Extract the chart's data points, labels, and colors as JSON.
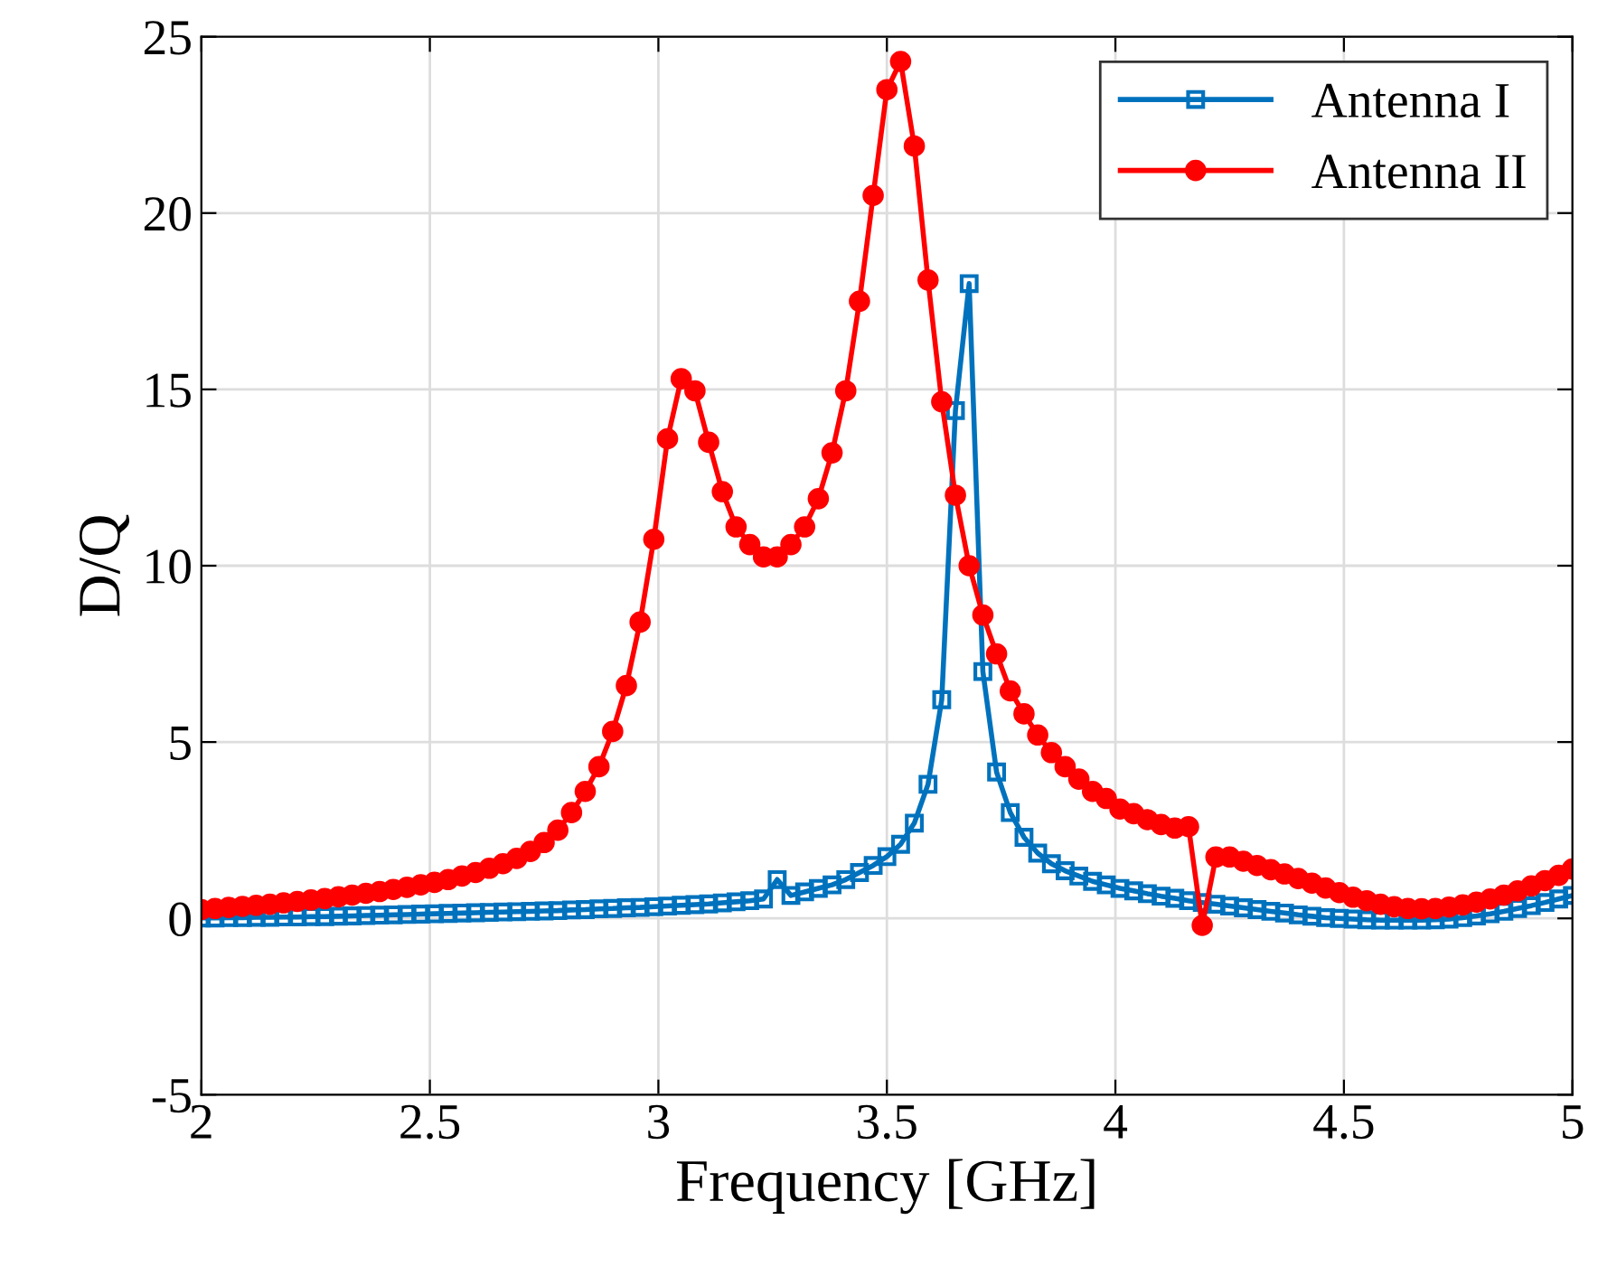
{
  "chart_data": {
    "type": "line",
    "xlabel": "Frequency [GHz]",
    "ylabel": "D/Q",
    "x": [
      2.0,
      2.03,
      2.06,
      2.09,
      2.12,
      2.15,
      2.18,
      2.21,
      2.24,
      2.27,
      2.3,
      2.33,
      2.36,
      2.39,
      2.42,
      2.45,
      2.48,
      2.51,
      2.54,
      2.57,
      2.6,
      2.63,
      2.66,
      2.69,
      2.72,
      2.75,
      2.78,
      2.81,
      2.84,
      2.87,
      2.9,
      2.93,
      2.96,
      2.99,
      3.02,
      3.05,
      3.08,
      3.11,
      3.14,
      3.17,
      3.2,
      3.23,
      3.26,
      3.29,
      3.32,
      3.35,
      3.38,
      3.41,
      3.44,
      3.47,
      3.5,
      3.53,
      3.56,
      3.59,
      3.62,
      3.65,
      3.68,
      3.71,
      3.74,
      3.77,
      3.8,
      3.83,
      3.86,
      3.89,
      3.92,
      3.95,
      3.98,
      4.01,
      4.04,
      4.07,
      4.1,
      4.13,
      4.16,
      4.19,
      4.22,
      4.25,
      4.28,
      4.31,
      4.34,
      4.37,
      4.4,
      4.43,
      4.46,
      4.49,
      4.52,
      4.55,
      4.58,
      4.61,
      4.64,
      4.67,
      4.7,
      4.73,
      4.76,
      4.79,
      4.82,
      4.85,
      4.88,
      4.91,
      4.94,
      4.97,
      5.0
    ],
    "series": [
      {
        "name": "Antenna I",
        "color": "#0072bd",
        "marker": "square",
        "values": [
          0.01,
          0.01,
          0.02,
          0.02,
          0.03,
          0.03,
          0.04,
          0.04,
          0.05,
          0.05,
          0.06,
          0.07,
          0.08,
          0.09,
          0.1,
          0.11,
          0.12,
          0.13,
          0.14,
          0.15,
          0.16,
          0.17,
          0.18,
          0.19,
          0.2,
          0.21,
          0.22,
          0.24,
          0.25,
          0.27,
          0.28,
          0.3,
          0.31,
          0.33,
          0.35,
          0.37,
          0.39,
          0.41,
          0.44,
          0.47,
          0.5,
          0.55,
          1.1,
          0.65,
          0.75,
          0.85,
          0.95,
          1.1,
          1.3,
          1.5,
          1.75,
          2.1,
          2.7,
          3.8,
          6.2,
          14.4,
          18.0,
          7.0,
          4.15,
          3.0,
          2.3,
          1.85,
          1.55,
          1.35,
          1.2,
          1.05,
          0.95,
          0.85,
          0.78,
          0.7,
          0.63,
          0.57,
          0.5,
          0.45,
          0.4,
          0.35,
          0.3,
          0.25,
          0.2,
          0.15,
          0.1,
          0.06,
          0.02,
          0.0,
          -0.02,
          -0.04,
          -0.05,
          -0.05,
          -0.05,
          -0.05,
          -0.04,
          -0.02,
          0.02,
          0.07,
          0.13,
          0.2,
          0.28,
          0.36,
          0.45,
          0.55,
          0.65
        ]
      },
      {
        "name": "Antenna II",
        "color": "#ff0000",
        "marker": "circle",
        "values": [
          0.25,
          0.28,
          0.31,
          0.34,
          0.37,
          0.4,
          0.44,
          0.48,
          0.52,
          0.56,
          0.61,
          0.66,
          0.71,
          0.76,
          0.82,
          0.88,
          0.95,
          1.02,
          1.1,
          1.2,
          1.3,
          1.42,
          1.55,
          1.7,
          1.9,
          2.15,
          2.5,
          3.0,
          3.6,
          4.3,
          5.3,
          6.6,
          8.4,
          10.75,
          13.6,
          15.3,
          14.96,
          13.5,
          12.1,
          11.1,
          10.6,
          10.25,
          10.25,
          10.6,
          11.1,
          11.9,
          13.2,
          14.96,
          17.5,
          20.5,
          23.5,
          24.3,
          21.9,
          18.1,
          14.65,
          12.0,
          10.0,
          8.6,
          7.5,
          6.45,
          5.8,
          5.2,
          4.7,
          4.3,
          3.95,
          3.6,
          3.4,
          3.1,
          2.97,
          2.8,
          2.66,
          2.56,
          2.6,
          -0.2,
          1.74,
          1.74,
          1.62,
          1.5,
          1.38,
          1.26,
          1.13,
          1.0,
          0.86,
          0.73,
          0.6,
          0.5,
          0.4,
          0.33,
          0.28,
          0.27,
          0.28,
          0.32,
          0.38,
          0.46,
          0.55,
          0.66,
          0.78,
          0.92,
          1.07,
          1.22,
          1.4
        ]
      }
    ],
    "xlim": [
      2,
      5
    ],
    "xticks": [
      2,
      2.5,
      3,
      3.5,
      4,
      4.5,
      5
    ],
    "ylim": [
      -5,
      25
    ],
    "yticks": [
      -5,
      0,
      5,
      10,
      15,
      20,
      25
    ],
    "grid": true,
    "legend": "top right",
    "line_style": "solid"
  }
}
